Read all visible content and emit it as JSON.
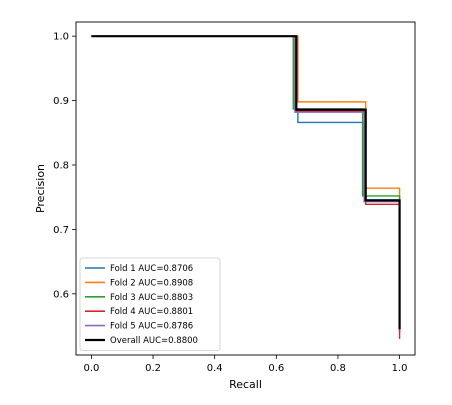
{
  "chart_data": {
    "type": "line",
    "title": "",
    "xlabel": "Recall",
    "ylabel": "Precision",
    "xlim": [
      -0.05,
      1.05
    ],
    "ylim": [
      0.505,
      1.022
    ],
    "xticks": [
      0.0,
      0.2,
      0.4,
      0.6,
      0.8,
      1.0
    ],
    "xtick_labels": [
      "0.0",
      "0.2",
      "0.4",
      "0.6",
      "0.8",
      "1.0"
    ],
    "yticks": [
      0.6,
      0.7,
      0.8,
      0.9,
      1.0
    ],
    "ytick_labels": [
      "0.6",
      "0.7",
      "0.8",
      "0.9",
      "1.0"
    ],
    "grid": false,
    "legend_position": "lower-left",
    "series": [
      {
        "name": "Fold 1 AUC=0.8706",
        "color": "#1f77b4",
        "points": [
          [
            0.0,
            1.0
          ],
          [
            0.66,
            1.0
          ],
          [
            0.66,
            0.887
          ],
          [
            0.67,
            0.887
          ],
          [
            0.67,
            0.866
          ],
          [
            0.88,
            0.866
          ],
          [
            0.88,
            0.755
          ],
          [
            0.89,
            0.755
          ],
          [
            0.89,
            0.746
          ],
          [
            1.0,
            0.746
          ],
          [
            1.0,
            0.54
          ]
        ]
      },
      {
        "name": "Fold 2 AUC=0.8908",
        "color": "#ff7f0e",
        "points": [
          [
            0.0,
            1.0
          ],
          [
            0.67,
            1.0
          ],
          [
            0.67,
            0.898
          ],
          [
            0.89,
            0.898
          ],
          [
            0.89,
            0.764
          ],
          [
            1.0,
            0.764
          ],
          [
            1.0,
            0.545
          ]
        ]
      },
      {
        "name": "Fold 3 AUC=0.8803",
        "color": "#2ca02c",
        "points": [
          [
            0.0,
            1.0
          ],
          [
            0.655,
            1.0
          ],
          [
            0.655,
            0.887
          ],
          [
            0.88,
            0.887
          ],
          [
            0.88,
            0.752
          ],
          [
            1.0,
            0.752
          ],
          [
            1.0,
            0.545
          ]
        ]
      },
      {
        "name": "Fold 4 AUC=0.8801",
        "color": "#d62728",
        "points": [
          [
            0.0,
            1.0
          ],
          [
            0.665,
            1.0
          ],
          [
            0.665,
            0.884
          ],
          [
            0.89,
            0.884
          ],
          [
            0.89,
            0.739
          ],
          [
            1.0,
            0.739
          ],
          [
            1.0,
            0.53
          ]
        ]
      },
      {
        "name": "Fold 5 AUC=0.8786",
        "color": "#9467bd",
        "points": [
          [
            0.0,
            1.0
          ],
          [
            0.66,
            1.0
          ],
          [
            0.66,
            0.882
          ],
          [
            0.885,
            0.882
          ],
          [
            0.885,
            0.743
          ],
          [
            1.0,
            0.743
          ],
          [
            1.0,
            0.548
          ]
        ]
      },
      {
        "name": "Overall AUC=0.8800",
        "color": "#000000",
        "points": [
          [
            0.0,
            1.0
          ],
          [
            0.665,
            1.0
          ],
          [
            0.665,
            0.886
          ],
          [
            0.89,
            0.886
          ],
          [
            0.89,
            0.745
          ],
          [
            1.0,
            0.745
          ],
          [
            1.0,
            0.545
          ]
        ]
      }
    ]
  }
}
